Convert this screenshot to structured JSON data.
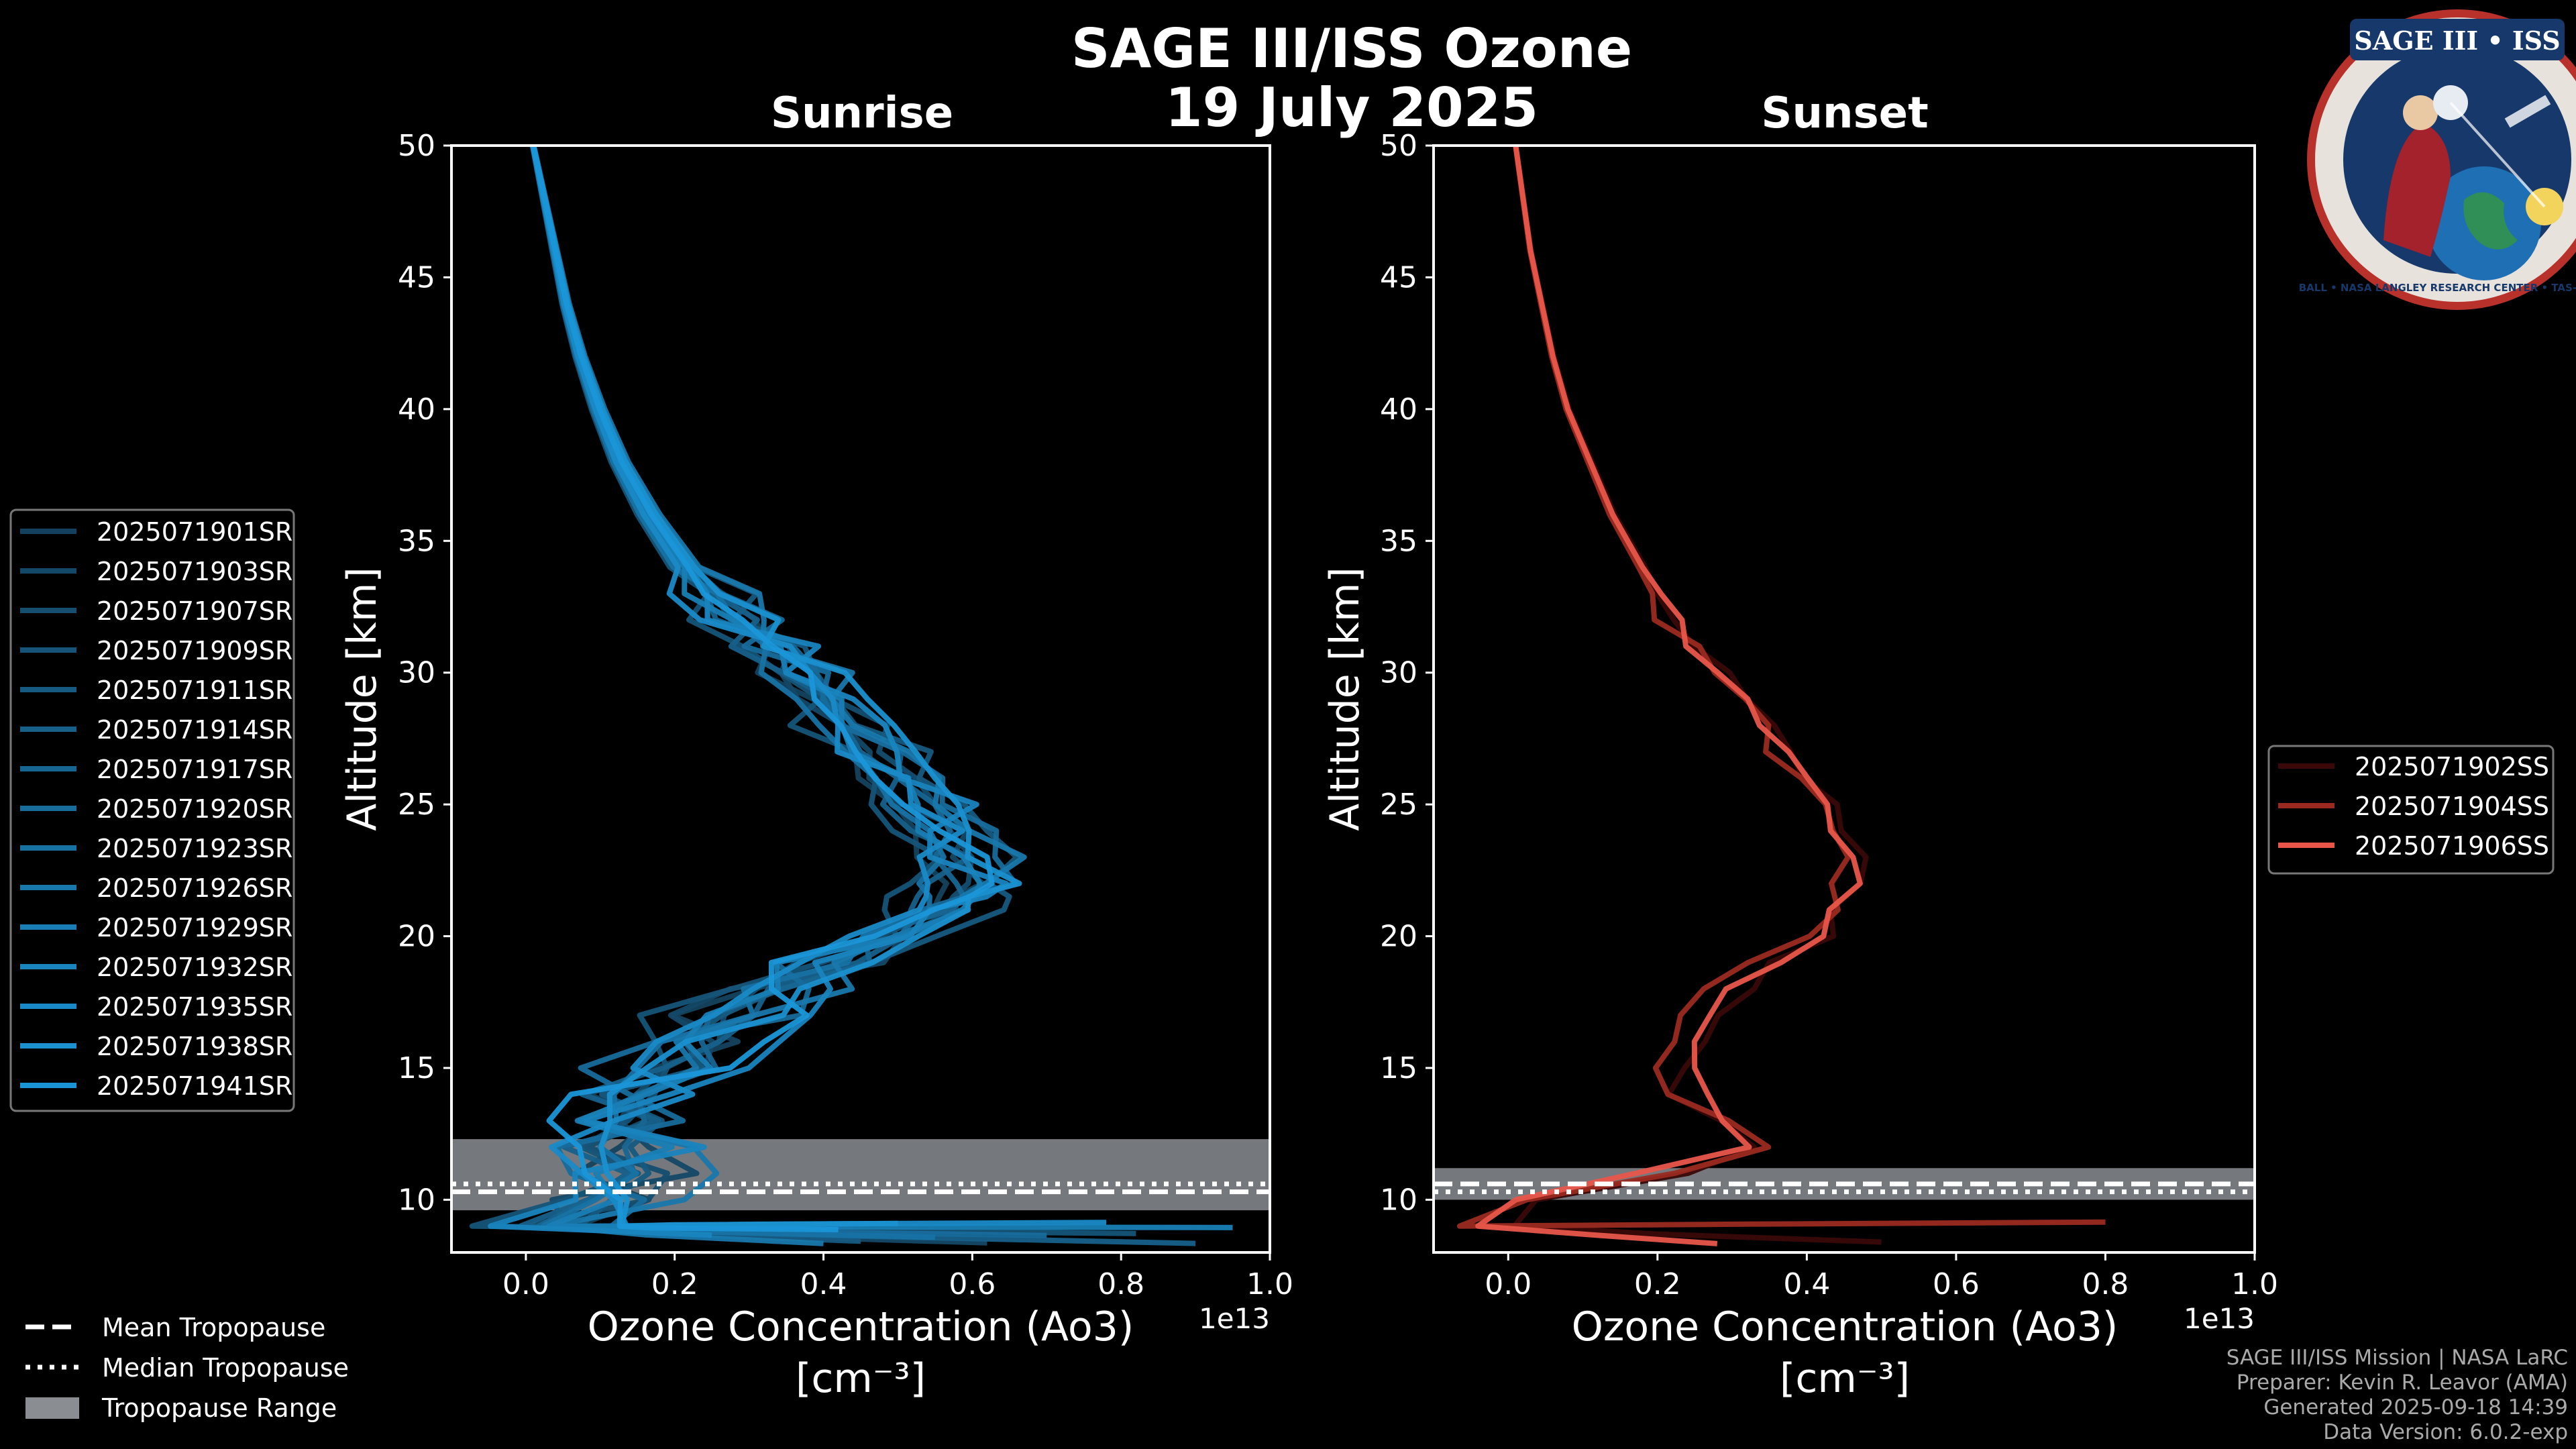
{
  "figure": {
    "title_line1": "SAGE III/ISS Ozone",
    "title_line2": "19 July 2025"
  },
  "colors": {
    "background": "#000000",
    "axes": "#ffffff",
    "sunrise_dark": "#14425e",
    "sunrise_light": "#1a96d8",
    "sunset_dark": "#3a0808",
    "sunset_mid": "#9a2a20",
    "sunset_light": "#e8564a",
    "tropopause_range": "#8a8d92"
  },
  "chart_data": [
    {
      "type": "line",
      "title": "Sunrise",
      "xlabel_line1": "Ozone Concentration (Ao3)",
      "xlabel_line2": "[cm⁻³]",
      "ylabel": "Altitude [km]",
      "x_offset_label": "1e13",
      "xlim": [
        -0.1,
        1.0
      ],
      "ylim": [
        8,
        50
      ],
      "x_ticks": [
        "0.0",
        "0.2",
        "0.4",
        "0.6",
        "0.8",
        "1.0"
      ],
      "x_tick_values": [
        0.0,
        0.2,
        0.4,
        0.6,
        0.8,
        1.0
      ],
      "y_ticks": [
        "10",
        "15",
        "20",
        "25",
        "30",
        "35",
        "40",
        "45",
        "50"
      ],
      "y_tick_values": [
        10,
        15,
        20,
        25,
        30,
        35,
        40,
        45,
        50
      ],
      "tropopause": {
        "range": [
          9.6,
          12.3
        ],
        "mean": 10.3,
        "median": 10.6
      },
      "profile_altitudes": [
        50,
        48,
        46,
        44,
        42,
        40,
        38,
        36,
        34,
        33,
        32,
        31,
        30,
        29,
        28,
        27,
        26,
        25,
        24,
        23,
        22,
        21.5,
        21,
        20,
        19,
        18,
        17,
        16,
        15,
        14,
        13,
        12,
        11,
        10,
        9
      ],
      "profile_base": [
        0.01,
        0.025,
        0.04,
        0.055,
        0.075,
        0.1,
        0.13,
        0.17,
        0.22,
        0.26,
        0.3,
        0.34,
        0.38,
        0.42,
        0.46,
        0.49,
        0.52,
        0.55,
        0.58,
        0.6,
        0.61,
        0.6,
        0.58,
        0.5,
        0.42,
        0.36,
        0.3,
        0.24,
        0.18,
        0.14,
        0.13,
        0.14,
        0.15,
        0.12,
        0.05
      ],
      "series": [
        {
          "name": "2025071901SR",
          "scale": 0.92,
          "jitter": 0.04,
          "bottom": 0.35
        },
        {
          "name": "2025071903SR",
          "scale": 0.96,
          "jitter": 0.05,
          "bottom": 0.62
        },
        {
          "name": "2025071907SR",
          "scale": 1.0,
          "jitter": 0.03,
          "bottom": 0.2
        },
        {
          "name": "2025071909SR",
          "scale": 0.88,
          "jitter": 0.06,
          "bottom": 0.82
        },
        {
          "name": "2025071911SR",
          "scale": 1.04,
          "jitter": 0.04,
          "bottom": 0.45
        },
        {
          "name": "2025071914SR",
          "scale": 0.94,
          "jitter": 0.05,
          "bottom": 0.9
        },
        {
          "name": "2025071917SR",
          "scale": 0.98,
          "jitter": 0.04,
          "bottom": 0.3
        },
        {
          "name": "2025071920SR",
          "scale": 1.02,
          "jitter": 0.06,
          "bottom": 0.7
        },
        {
          "name": "2025071923SR",
          "scale": 0.9,
          "jitter": 0.03,
          "bottom": 0.55
        },
        {
          "name": "2025071926SR",
          "scale": 1.06,
          "jitter": 0.05,
          "bottom": 0.4
        },
        {
          "name": "2025071929SR",
          "scale": 0.97,
          "jitter": 0.04,
          "bottom": 0.95
        },
        {
          "name": "2025071932SR",
          "scale": 1.0,
          "jitter": 0.06,
          "bottom": 0.25
        },
        {
          "name": "2025071935SR",
          "scale": 0.93,
          "jitter": 0.05,
          "bottom": 0.78
        },
        {
          "name": "2025071938SR",
          "scale": 1.03,
          "jitter": 0.04,
          "bottom": 0.5
        },
        {
          "name": "2025071941SR",
          "scale": 0.99,
          "jitter": 0.05,
          "bottom": 0.42
        }
      ]
    },
    {
      "type": "line",
      "title": "Sunset",
      "xlabel_line1": "Ozone Concentration (Ao3)",
      "xlabel_line2": "[cm⁻³]",
      "ylabel": "Altitude [km]",
      "x_offset_label": "1e13",
      "xlim": [
        -0.1,
        1.0
      ],
      "ylim": [
        8,
        50
      ],
      "x_ticks": [
        "0.0",
        "0.2",
        "0.4",
        "0.6",
        "0.8",
        "1.0"
      ],
      "x_tick_values": [
        0.0,
        0.2,
        0.4,
        0.6,
        0.8,
        1.0
      ],
      "y_ticks": [
        "10",
        "15",
        "20",
        "25",
        "30",
        "35",
        "40",
        "45",
        "50"
      ],
      "y_tick_values": [
        10,
        15,
        20,
        25,
        30,
        35,
        40,
        45,
        50
      ],
      "tropopause": {
        "range": [
          10.0,
          11.2
        ],
        "mean": 10.6,
        "median": 10.3
      },
      "profile_altitudes": [
        50,
        48,
        46,
        44,
        42,
        40,
        38,
        36,
        34,
        33,
        32,
        31,
        30,
        29,
        28,
        27,
        26,
        25,
        24,
        23,
        22,
        21,
        20,
        19,
        18,
        17,
        16,
        15,
        14,
        13,
        12,
        11,
        10,
        9
      ],
      "profile_base": [
        0.01,
        0.02,
        0.03,
        0.045,
        0.06,
        0.08,
        0.11,
        0.14,
        0.18,
        0.2,
        0.22,
        0.25,
        0.28,
        0.31,
        0.34,
        0.37,
        0.4,
        0.42,
        0.44,
        0.47,
        0.46,
        0.44,
        0.43,
        0.36,
        0.31,
        0.27,
        0.22,
        0.22,
        0.24,
        0.3,
        0.32,
        0.2,
        0.04,
        -0.03
      ],
      "series": [
        {
          "name": "2025071902SS",
          "scale": 1.02,
          "jitter": 0.02,
          "bottom": 0.5
        },
        {
          "name": "2025071904SS",
          "scale": 0.97,
          "jitter": 0.02,
          "bottom": 0.8
        },
        {
          "name": "2025071906SS",
          "scale": 1.0,
          "jitter": 0.015,
          "bottom": 0.28
        }
      ]
    }
  ],
  "legend_common": [
    {
      "label": "Mean Tropopause",
      "style": "dashed"
    },
    {
      "label": "Median Tropopause",
      "style": "dotted"
    },
    {
      "label": "Tropopause Range",
      "style": "patch"
    }
  ],
  "logo": {
    "top_text": "SAGE III • ISS",
    "ring_text": "BALL • NASA LANGLEY RESEARCH CENTER • TAS-I • ESA"
  },
  "footer": {
    "line1": "SAGE III/ISS Mission | NASA LaRC",
    "line2": "Preparer: Kevin R. Leavor (AMA)",
    "line3": "Generated 2025-09-18 14:39",
    "line4": "Data Version: 6.0.2-exp"
  }
}
